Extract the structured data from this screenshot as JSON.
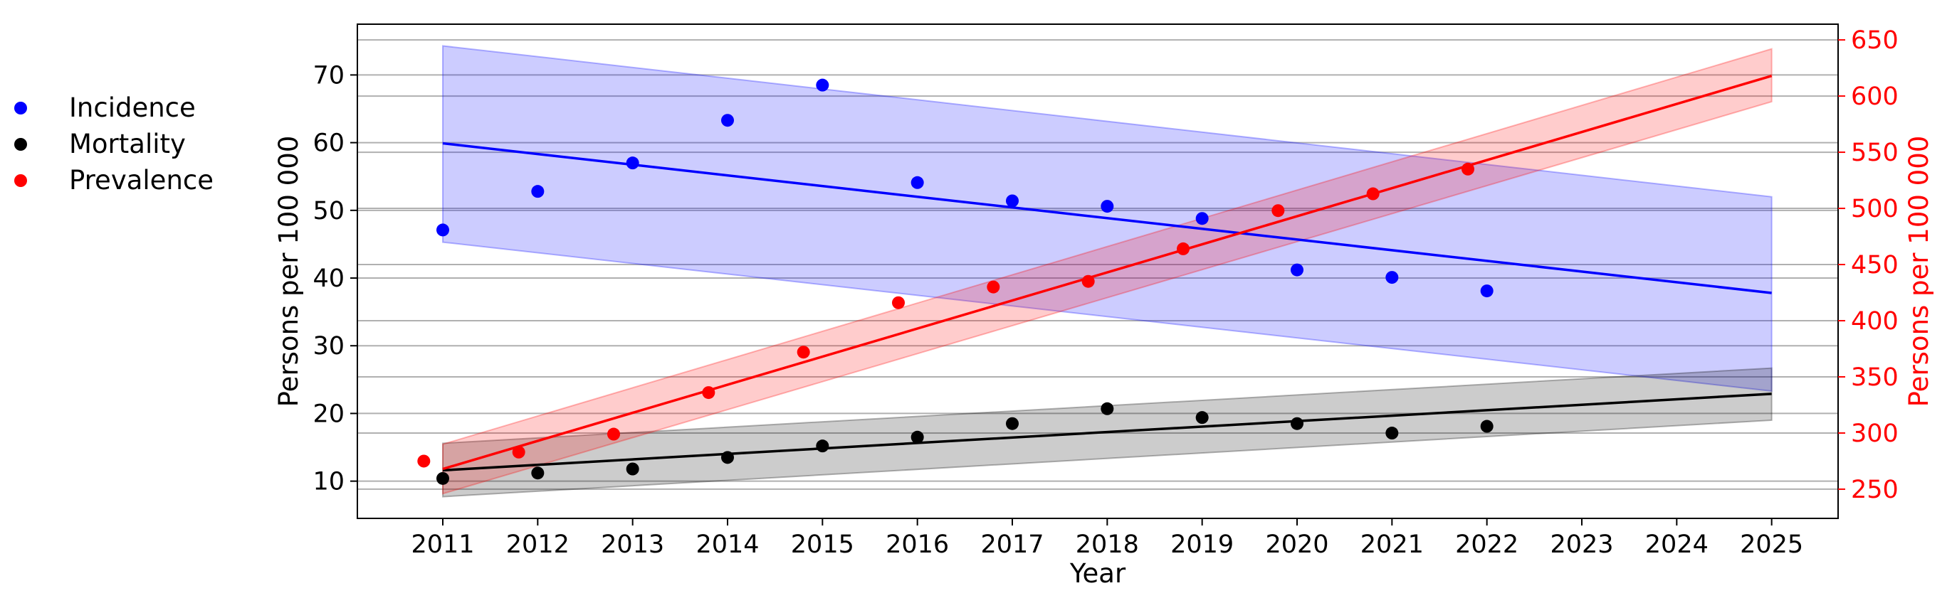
{
  "chart_data": {
    "type": "scatter",
    "xlabel": "Year",
    "ylabel_left": "Persons per 100 000",
    "ylabel_right": "Persons per 100 000",
    "xlim": [
      2010.1,
      2025.7
    ],
    "ylim_left": [
      4.5,
      77.5
    ],
    "ylim_right": [
      224,
      664
    ],
    "x_ticks": [
      2011,
      2012,
      2013,
      2014,
      2015,
      2016,
      2017,
      2018,
      2019,
      2020,
      2021,
      2022,
      2023,
      2024,
      2025
    ],
    "y_ticks_left": [
      10,
      20,
      30,
      40,
      50,
      60,
      70
    ],
    "y_ticks_right": [
      250,
      300,
      350,
      400,
      450,
      500,
      550,
      600,
      650
    ],
    "grid": "horizontal",
    "legend_position": "left",
    "series": [
      {
        "name": "Incidence",
        "color": "#0000ff",
        "axis": "left",
        "points": [
          [
            2011,
            47.1
          ],
          [
            2012,
            52.8
          ],
          [
            2013,
            57.0
          ],
          [
            2014,
            63.3
          ],
          [
            2015,
            68.5
          ],
          [
            2016,
            54.1
          ],
          [
            2017,
            51.4
          ],
          [
            2018,
            50.6
          ],
          [
            2019,
            48.8
          ],
          [
            2020,
            41.2
          ],
          [
            2021,
            40.1
          ],
          [
            2022,
            38.1
          ]
        ],
        "trend": [
          [
            2011,
            59.9
          ],
          [
            2025,
            37.8
          ]
        ],
        "band_upper": [
          [
            2011,
            74.3
          ],
          [
            2025,
            52.0
          ]
        ],
        "band_lower": [
          [
            2011,
            45.3
          ],
          [
            2025,
            23.3
          ]
        ]
      },
      {
        "name": "Mortality",
        "color": "#000000",
        "axis": "left",
        "points": [
          [
            2011,
            10.4
          ],
          [
            2012,
            11.2
          ],
          [
            2013,
            11.8
          ],
          [
            2014,
            13.5
          ],
          [
            2015,
            15.2
          ],
          [
            2016,
            16.5
          ],
          [
            2017,
            18.5
          ],
          [
            2018,
            20.7
          ],
          [
            2019,
            19.4
          ],
          [
            2020,
            18.5
          ],
          [
            2021,
            17.1
          ],
          [
            2022,
            18.1
          ]
        ],
        "trend": [
          [
            2011,
            11.6
          ],
          [
            2025,
            22.9
          ]
        ],
        "band_upper": [
          [
            2011,
            15.6
          ],
          [
            2025,
            26.7
          ]
        ],
        "band_lower": [
          [
            2011,
            7.7
          ],
          [
            2025,
            19.0
          ]
        ]
      },
      {
        "name": "Prevalence",
        "color": "#ff0000",
        "axis": "right",
        "points": [
          [
            2010.8,
            275
          ],
          [
            2011.8,
            283
          ],
          [
            2012.8,
            299
          ],
          [
            2013.8,
            336
          ],
          [
            2014.8,
            372
          ],
          [
            2015.8,
            416
          ],
          [
            2016.8,
            430
          ],
          [
            2017.8,
            435
          ],
          [
            2018.8,
            464
          ],
          [
            2019.8,
            498
          ],
          [
            2020.8,
            513
          ],
          [
            2021.8,
            535
          ]
        ],
        "trend": [
          [
            2011,
            268
          ],
          [
            2025,
            618
          ]
        ],
        "band_upper": [
          [
            2011,
            290
          ],
          [
            2025,
            642
          ]
        ],
        "band_lower": [
          [
            2011,
            246
          ],
          [
            2025,
            595
          ]
        ]
      }
    ]
  }
}
